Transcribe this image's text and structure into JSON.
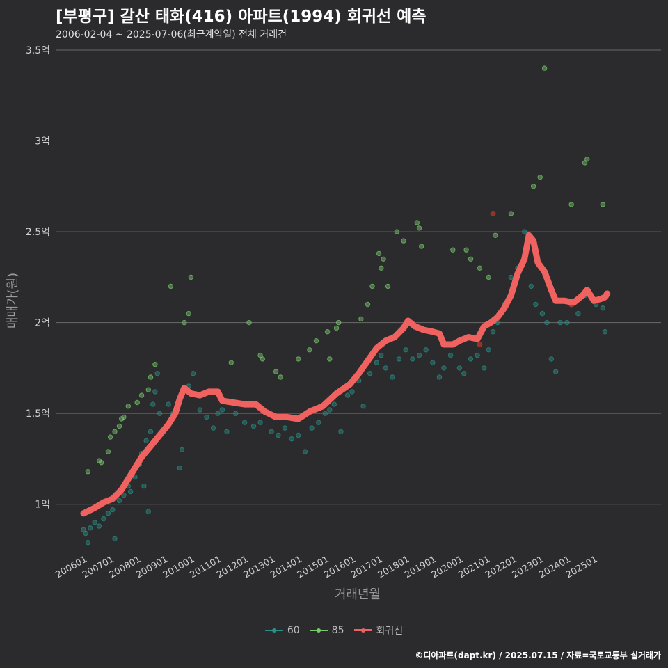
{
  "title": "[부평구] 갈산 태화(416) 아파트(1994) 회귀선 예측",
  "subtitle": "2006-02-04 ~ 2025-07-06(최근계약일) 전체 거래건",
  "footer": "©디아파트(dapt.kr) / 2025.07.15 / 자료=국토교통부 실거래가",
  "colors": {
    "background": "#2b2b2d",
    "grid": "#6a6a6a",
    "s60": "#2a8f86",
    "s85": "#7bc96f",
    "regression": "#f0625f",
    "outlier": "#c0392b"
  },
  "chart_data": {
    "type": "scatter",
    "xlabel": "거래년월",
    "ylabel": "매매가(원)",
    "ylim": [
      0.75,
      3.5
    ],
    "xlim": [
      "2006-01",
      "2025-12"
    ],
    "y_ticks": [
      {
        "value": 1.0,
        "label": "1억"
      },
      {
        "value": 1.5,
        "label": "1.5억"
      },
      {
        "value": 2.0,
        "label": "2억"
      },
      {
        "value": 2.5,
        "label": "2.5억"
      },
      {
        "value": 3.0,
        "label": "3억"
      },
      {
        "value": 3.5,
        "label": "3.5억"
      }
    ],
    "x_ticks": [
      "200601",
      "200701",
      "200801",
      "200901",
      "201001",
      "201101",
      "201201",
      "201301",
      "201401",
      "201501",
      "201601",
      "201701",
      "201801",
      "201901",
      "202001",
      "202101",
      "202201",
      "202301",
      "202401",
      "202501"
    ],
    "grid": "horizontal",
    "legend_position": "bottom",
    "series": [
      {
        "name": "60",
        "color": "#2a8f86",
        "points": [
          [
            "2006-01",
            0.86
          ],
          [
            "2006-02",
            0.84
          ],
          [
            "2006-03",
            0.79
          ],
          [
            "2006-04",
            0.87
          ],
          [
            "2006-06",
            0.9
          ],
          [
            "2006-08",
            0.88
          ],
          [
            "2006-10",
            0.92
          ],
          [
            "2006-12",
            0.95
          ],
          [
            "2007-02",
            0.97
          ],
          [
            "2007-03",
            0.81
          ],
          [
            "2007-05",
            1.02
          ],
          [
            "2007-07",
            1.05
          ],
          [
            "2007-09",
            1.1
          ],
          [
            "2007-10",
            1.07
          ],
          [
            "2007-12",
            1.15
          ],
          [
            "2008-02",
            1.22
          ],
          [
            "2008-03",
            1.28
          ],
          [
            "2008-04",
            1.1
          ],
          [
            "2008-05",
            1.35
          ],
          [
            "2008-06",
            0.96
          ],
          [
            "2008-07",
            1.4
          ],
          [
            "2008-08",
            1.55
          ],
          [
            "2008-09",
            1.62
          ],
          [
            "2008-10",
            1.72
          ],
          [
            "2008-11",
            1.5
          ],
          [
            "2009-03",
            1.55
          ],
          [
            "2009-05",
            1.5
          ],
          [
            "2009-08",
            1.2
          ],
          [
            "2009-09",
            1.3
          ],
          [
            "2009-12",
            1.65
          ],
          [
            "2010-02",
            1.72
          ],
          [
            "2010-05",
            1.52
          ],
          [
            "2010-08",
            1.48
          ],
          [
            "2010-11",
            1.42
          ],
          [
            "2011-01",
            1.5
          ],
          [
            "2011-03",
            1.52
          ],
          [
            "2011-05",
            1.4
          ],
          [
            "2011-09",
            1.5
          ],
          [
            "2012-01",
            1.45
          ],
          [
            "2012-05",
            1.43
          ],
          [
            "2012-08",
            1.45
          ],
          [
            "2013-01",
            1.4
          ],
          [
            "2013-04",
            1.38
          ],
          [
            "2013-07",
            1.42
          ],
          [
            "2013-10",
            1.36
          ],
          [
            "2014-01",
            1.38
          ],
          [
            "2014-04",
            1.29
          ],
          [
            "2014-07",
            1.42
          ],
          [
            "2014-10",
            1.45
          ],
          [
            "2015-01",
            1.5
          ],
          [
            "2015-03",
            1.52
          ],
          [
            "2015-05",
            1.55
          ],
          [
            "2015-08",
            1.4
          ],
          [
            "2015-11",
            1.6
          ],
          [
            "2016-01",
            1.62
          ],
          [
            "2016-04",
            1.68
          ],
          [
            "2016-06",
            1.54
          ],
          [
            "2016-09",
            1.72
          ],
          [
            "2016-12",
            1.78
          ],
          [
            "2017-02",
            1.82
          ],
          [
            "2017-04",
            1.75
          ],
          [
            "2017-07",
            1.7
          ],
          [
            "2017-10",
            1.8
          ],
          [
            "2018-01",
            1.85
          ],
          [
            "2018-04",
            1.8
          ],
          [
            "2018-07",
            1.82
          ],
          [
            "2018-10",
            1.85
          ],
          [
            "2019-01",
            1.78
          ],
          [
            "2019-04",
            1.7
          ],
          [
            "2019-06",
            1.75
          ],
          [
            "2019-09",
            1.82
          ],
          [
            "2020-01",
            1.75
          ],
          [
            "2020-03",
            1.72
          ],
          [
            "2020-06",
            1.8
          ],
          [
            "2020-09",
            1.82
          ],
          [
            "2020-12",
            1.75
          ],
          [
            "2021-02",
            1.85
          ],
          [
            "2021-04",
            1.95
          ],
          [
            "2021-06",
            2.0
          ],
          [
            "2021-09",
            2.1
          ],
          [
            "2021-12",
            2.25
          ],
          [
            "2022-03",
            2.3
          ],
          [
            "2022-06",
            2.5
          ],
          [
            "2022-09",
            2.2
          ],
          [
            "2022-11",
            2.1
          ],
          [
            "2023-02",
            2.05
          ],
          [
            "2023-04",
            2.0
          ],
          [
            "2023-06",
            1.8
          ],
          [
            "2023-08",
            1.73
          ],
          [
            "2023-10",
            2.0
          ],
          [
            "2024-01",
            2.0
          ],
          [
            "2024-03",
            2.1
          ],
          [
            "2024-06",
            2.05
          ],
          [
            "2024-09",
            2.15
          ],
          [
            "2025-02",
            2.1
          ],
          [
            "2025-05",
            2.08
          ],
          [
            "2025-06",
            1.95
          ]
        ]
      },
      {
        "name": "85",
        "color": "#7bc96f",
        "points": [
          [
            "2006-03",
            1.18
          ],
          [
            "2006-08",
            1.24
          ],
          [
            "2006-09",
            1.23
          ],
          [
            "2006-12",
            1.29
          ],
          [
            "2007-01",
            1.37
          ],
          [
            "2007-03",
            1.4
          ],
          [
            "2007-05",
            1.43
          ],
          [
            "2007-06",
            1.47
          ],
          [
            "2007-07",
            1.48
          ],
          [
            "2007-09",
            1.54
          ],
          [
            "2008-01",
            1.56
          ],
          [
            "2008-03",
            1.6
          ],
          [
            "2008-06",
            1.63
          ],
          [
            "2008-07",
            1.7
          ],
          [
            "2008-09",
            1.77
          ],
          [
            "2009-04",
            2.2
          ],
          [
            "2009-10",
            2.0
          ],
          [
            "2009-12",
            2.05
          ],
          [
            "2010-01",
            2.25
          ],
          [
            "2011-07",
            1.78
          ],
          [
            "2012-03",
            2.0
          ],
          [
            "2012-08",
            1.82
          ],
          [
            "2012-09",
            1.8
          ],
          [
            "2013-03",
            1.73
          ],
          [
            "2013-05",
            1.7
          ],
          [
            "2014-01",
            1.8
          ],
          [
            "2014-06",
            1.85
          ],
          [
            "2014-09",
            1.9
          ],
          [
            "2015-02",
            1.95
          ],
          [
            "2015-03",
            1.8
          ],
          [
            "2015-06",
            1.97
          ],
          [
            "2015-07",
            2.0
          ],
          [
            "2016-05",
            2.02
          ],
          [
            "2016-08",
            2.1
          ],
          [
            "2016-10",
            2.2
          ],
          [
            "2017-01",
            2.38
          ],
          [
            "2017-02",
            2.3
          ],
          [
            "2017-03",
            2.35
          ],
          [
            "2017-05",
            2.2
          ],
          [
            "2017-09",
            2.5
          ],
          [
            "2017-12",
            2.45
          ],
          [
            "2018-06",
            2.55
          ],
          [
            "2018-07",
            2.52
          ],
          [
            "2018-08",
            2.42
          ],
          [
            "2019-10",
            2.4
          ],
          [
            "2020-04",
            2.4
          ],
          [
            "2020-06",
            2.35
          ],
          [
            "2020-10",
            2.3
          ],
          [
            "2021-02",
            2.25
          ],
          [
            "2021-05",
            2.48
          ],
          [
            "2021-12",
            2.6
          ],
          [
            "2022-10",
            2.75
          ],
          [
            "2023-01",
            2.8
          ],
          [
            "2023-03",
            3.4
          ],
          [
            "2024-03",
            2.65
          ],
          [
            "2024-09",
            2.88
          ],
          [
            "2024-10",
            2.9
          ],
          [
            "2025-05",
            2.65
          ]
        ]
      }
    ],
    "outliers": [
      [
        "2021-04",
        2.6
      ],
      [
        "2020-10",
        1.88
      ],
      [
        "2024-03",
        2.1
      ]
    ],
    "regression": {
      "name": "회귀선",
      "color": "#f0625f",
      "points": [
        [
          "2006-01",
          0.95
        ],
        [
          "2006-06",
          0.98
        ],
        [
          "2006-10",
          1.01
        ],
        [
          "2007-02",
          1.03
        ],
        [
          "2007-06",
          1.08
        ],
        [
          "2007-10",
          1.16
        ],
        [
          "2008-03",
          1.26
        ],
        [
          "2008-07",
          1.32
        ],
        [
          "2008-11",
          1.38
        ],
        [
          "2009-03",
          1.44
        ],
        [
          "2009-06",
          1.5
        ],
        [
          "2009-08",
          1.58
        ],
        [
          "2009-10",
          1.64
        ],
        [
          "2010-01",
          1.61
        ],
        [
          "2010-05",
          1.6
        ],
        [
          "2010-09",
          1.62
        ],
        [
          "2011-01",
          1.62
        ],
        [
          "2011-03",
          1.57
        ],
        [
          "2011-08",
          1.56
        ],
        [
          "2012-01",
          1.55
        ],
        [
          "2012-06",
          1.55
        ],
        [
          "2012-10",
          1.51
        ],
        [
          "2013-03",
          1.48
        ],
        [
          "2013-08",
          1.48
        ],
        [
          "2014-01",
          1.47
        ],
        [
          "2014-06",
          1.51
        ],
        [
          "2014-12",
          1.54
        ],
        [
          "2015-06",
          1.61
        ],
        [
          "2015-12",
          1.66
        ],
        [
          "2016-04",
          1.72
        ],
        [
          "2016-08",
          1.79
        ],
        [
          "2016-12",
          1.86
        ],
        [
          "2017-04",
          1.9
        ],
        [
          "2017-08",
          1.92
        ],
        [
          "2017-12",
          1.97
        ],
        [
          "2018-02",
          2.01
        ],
        [
          "2018-05",
          1.98
        ],
        [
          "2018-09",
          1.96
        ],
        [
          "2019-01",
          1.95
        ],
        [
          "2019-04",
          1.94
        ],
        [
          "2019-06",
          1.88
        ],
        [
          "2019-10",
          1.88
        ],
        [
          "2020-01",
          1.9
        ],
        [
          "2020-05",
          1.92
        ],
        [
          "2020-09",
          1.91
        ],
        [
          "2020-12",
          1.98
        ],
        [
          "2021-03",
          2.0
        ],
        [
          "2021-06",
          2.03
        ],
        [
          "2021-09",
          2.08
        ],
        [
          "2021-12",
          2.15
        ],
        [
          "2022-03",
          2.27
        ],
        [
          "2022-06",
          2.35
        ],
        [
          "2022-08",
          2.48
        ],
        [
          "2022-10",
          2.45
        ],
        [
          "2022-12",
          2.33
        ],
        [
          "2023-03",
          2.28
        ],
        [
          "2023-06",
          2.18
        ],
        [
          "2023-08",
          2.12
        ],
        [
          "2023-12",
          2.12
        ],
        [
          "2024-04",
          2.11
        ],
        [
          "2024-08",
          2.15
        ],
        [
          "2024-10",
          2.18
        ],
        [
          "2025-01",
          2.12
        ],
        [
          "2025-04",
          2.13
        ],
        [
          "2025-06",
          2.14
        ],
        [
          "2025-07",
          2.16
        ]
      ]
    }
  },
  "legend": [
    {
      "label": "60",
      "color": "#2a8f86"
    },
    {
      "label": "85",
      "color": "#7bc96f"
    },
    {
      "label": "회귀선",
      "color": "#f0625f"
    }
  ]
}
